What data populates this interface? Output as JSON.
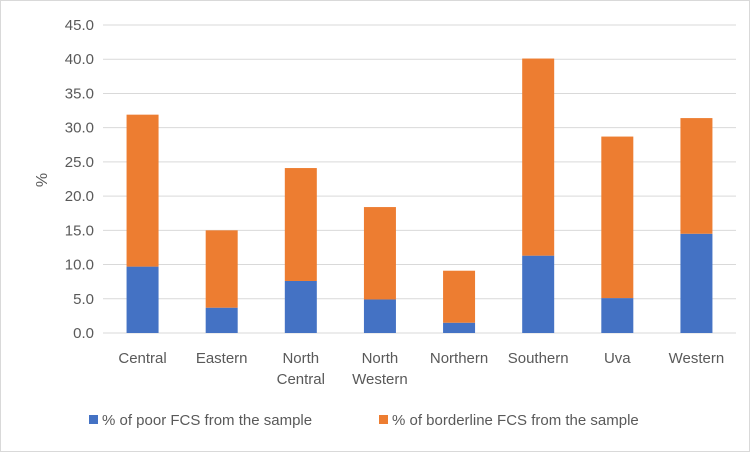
{
  "chart_data": {
    "type": "bar",
    "stacked": true,
    "title": "",
    "xlabel": "",
    "ylabel": "%",
    "ylim": [
      0,
      45
    ],
    "y_ticks": [
      "0.0",
      "5.0",
      "10.0",
      "15.0",
      "20.0",
      "25.0",
      "30.0",
      "35.0",
      "40.0",
      "45.0"
    ],
    "grid": true,
    "legend_position": "bottom",
    "categories": [
      [
        "Central"
      ],
      [
        "Eastern"
      ],
      [
        "North",
        "Central"
      ],
      [
        "North",
        "Western"
      ],
      [
        "Northern"
      ],
      [
        "Southern"
      ],
      [
        "Uva"
      ],
      [
        "Western"
      ]
    ],
    "series": [
      {
        "name": "% of poor FCS from the sample",
        "color": "#4472c4",
        "values": [
          9.7,
          3.7,
          7.6,
          4.9,
          1.5,
          11.3,
          5.1,
          14.5
        ]
      },
      {
        "name": "% of borderline FCS from the sample",
        "color": "#ed7d31",
        "values": [
          22.2,
          11.3,
          16.5,
          13.5,
          7.6,
          28.8,
          23.6,
          16.9
        ]
      }
    ]
  }
}
